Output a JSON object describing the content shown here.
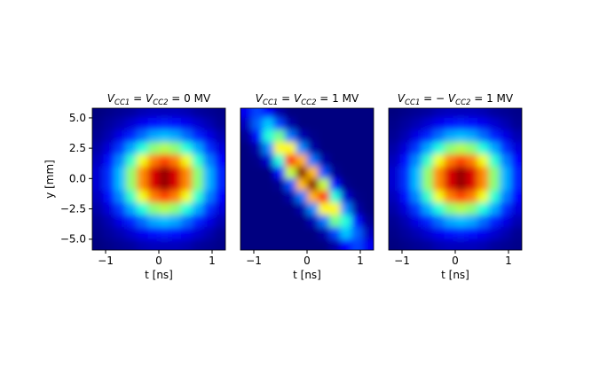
{
  "chart_data": [
    {
      "type": "heatmap",
      "cmap": "jet",
      "title_parts": [
        "V",
        "CC1",
        " = ",
        "V",
        "CC2",
        " = 0 MV"
      ],
      "xlabel": "t [ns]",
      "ylabel": "y [mm]",
      "xlim": [
        -1.25,
        1.25
      ],
      "ylim": [
        -5.9,
        5.8
      ],
      "xticks": [
        {
          "value": -1,
          "label": "−1"
        },
        0,
        1
      ],
      "yticks": [
        {
          "value": 5,
          "label": "5.0"
        },
        {
          "value": 2.5,
          "label": "2.5"
        },
        {
          "value": 0,
          "label": "0.0"
        },
        {
          "value": -2.5,
          "label": "−2.5"
        },
        {
          "value": -5,
          "label": "−5.0"
        }
      ],
      "x": [
        -1.146,
        -0.938,
        -0.729,
        -0.521,
        -0.313,
        -0.104,
        0.104,
        0.313,
        0.521,
        0.729,
        0.938,
        1.146
      ],
      "y": [
        5.5,
        4.5,
        3.5,
        2.5,
        1.5,
        0.5,
        -0.5,
        -1.5,
        -2.5,
        -3.5,
        -4.5,
        -5.5
      ],
      "z": [
        [
          0,
          0.01,
          0.02,
          0.03,
          0.05,
          0.06,
          0.06,
          0.06,
          0.05,
          0.03,
          0.02,
          0.01
        ],
        [
          0.01,
          0.03,
          0.05,
          0.08,
          0.11,
          0.14,
          0.15,
          0.14,
          0.11,
          0.08,
          0.05,
          0.02
        ],
        [
          0.02,
          0.05,
          0.1,
          0.16,
          0.23,
          0.29,
          0.31,
          0.29,
          0.23,
          0.16,
          0.1,
          0.05
        ],
        [
          0.04,
          0.09,
          0.18,
          0.29,
          0.41,
          0.51,
          0.55,
          0.51,
          0.41,
          0.29,
          0.17,
          0.09
        ],
        [
          0.06,
          0.14,
          0.26,
          0.43,
          0.61,
          0.75,
          0.81,
          0.75,
          0.61,
          0.42,
          0.25,
          0.13
        ],
        [
          0.08,
          0.17,
          0.31,
          0.52,
          0.74,
          0.91,
          0.98,
          0.91,
          0.74,
          0.51,
          0.3,
          0.16
        ],
        [
          0.08,
          0.17,
          0.31,
          0.52,
          0.74,
          0.91,
          0.98,
          0.91,
          0.74,
          0.51,
          0.3,
          0.16
        ],
        [
          0.06,
          0.14,
          0.26,
          0.43,
          0.61,
          0.75,
          0.81,
          0.75,
          0.61,
          0.42,
          0.25,
          0.13
        ],
        [
          0.04,
          0.09,
          0.18,
          0.29,
          0.41,
          0.51,
          0.55,
          0.51,
          0.41,
          0.29,
          0.17,
          0.09
        ],
        [
          0.02,
          0.05,
          0.1,
          0.16,
          0.23,
          0.29,
          0.31,
          0.29,
          0.23,
          0.16,
          0.1,
          0.05
        ],
        [
          0.01,
          0.03,
          0.05,
          0.08,
          0.11,
          0.14,
          0.15,
          0.14,
          0.11,
          0.08,
          0.05,
          0.02
        ],
        [
          0,
          0.01,
          0.02,
          0.03,
          0.05,
          0.06,
          0.06,
          0.06,
          0.05,
          0.03,
          0.02,
          0.01
        ]
      ]
    },
    {
      "type": "heatmap",
      "cmap": "jet",
      "title_parts": [
        "V",
        "CC1",
        " = ",
        "V",
        "CC2",
        " = 1 MV"
      ],
      "xlabel": "t [ns]",
      "xlim": [
        -1.25,
        1.25
      ],
      "ylim": [
        -5.9,
        5.8
      ],
      "xticks": [
        {
          "value": -1,
          "label": "−1"
        },
        0,
        1
      ],
      "x": [
        -1.146,
        -0.938,
        -0.729,
        -0.521,
        -0.313,
        -0.104,
        0.104,
        0.313,
        0.521,
        0.729,
        0.938,
        1.146
      ],
      "y": [
        5.5,
        4.5,
        3.5,
        2.5,
        1.5,
        0.5,
        -0.5,
        -1.5,
        -2.5,
        -3.5,
        -4.5,
        -5.5
      ],
      "z": [
        [
          0.11,
          0.19,
          0.13,
          0.04,
          0,
          0,
          0,
          0,
          0,
          0,
          0,
          0
        ],
        [
          0.06,
          0.22,
          0.32,
          0.19,
          0.04,
          0,
          0,
          0,
          0,
          0,
          0,
          0
        ],
        [
          0.02,
          0.14,
          0.41,
          0.49,
          0.24,
          0.05,
          0.01,
          0,
          0,
          0,
          0,
          0
        ],
        [
          0,
          0.04,
          0.26,
          0.63,
          0.63,
          0.26,
          0.04,
          0,
          0,
          0,
          0,
          0
        ],
        [
          0,
          0.01,
          0.08,
          0.41,
          0.84,
          0.7,
          0.24,
          0.04,
          0,
          0,
          0,
          0
        ],
        [
          0,
          0,
          0,
          0.14,
          0.57,
          0.99,
          0.69,
          0.2,
          0.02,
          0,
          0,
          0
        ],
        [
          0,
          0,
          0,
          0.02,
          0.2,
          0.69,
          0.99,
          0.57,
          0.14,
          0.01,
          0,
          0
        ],
        [
          0,
          0,
          0,
          0,
          0.04,
          0.24,
          0.7,
          0.84,
          0.41,
          0.08,
          0.01,
          0
        ],
        [
          0,
          0,
          0,
          0,
          0,
          0.04,
          0.26,
          0.63,
          0.63,
          0.26,
          0.04,
          0
        ],
        [
          0,
          0,
          0,
          0,
          0,
          0,
          0.05,
          0.24,
          0.49,
          0.41,
          0.14,
          0.02
        ],
        [
          0,
          0,
          0,
          0,
          0,
          0,
          0,
          0.04,
          0.19,
          0.32,
          0.22,
          0.06
        ],
        [
          0,
          0,
          0,
          0,
          0,
          0,
          0,
          0,
          0.04,
          0.13,
          0.19,
          0.11
        ]
      ]
    },
    {
      "type": "heatmap",
      "cmap": "jet",
      "title_parts": [
        "V",
        "CC1",
        " = − ",
        "V",
        "CC2",
        " = 1 MV"
      ],
      "xlabel": "t [ns]",
      "xlim": [
        -1.25,
        1.25
      ],
      "ylim": [
        -5.9,
        5.8
      ],
      "xticks": [
        {
          "value": -1,
          "label": "−1"
        },
        0,
        1
      ],
      "x": [
        -1.146,
        -0.938,
        -0.729,
        -0.521,
        -0.313,
        -0.104,
        0.104,
        0.313,
        0.521,
        0.729,
        0.938,
        1.146
      ],
      "y": [
        5.5,
        4.5,
        3.5,
        2.5,
        1.5,
        0.5,
        -0.5,
        -1.5,
        -2.5,
        -3.5,
        -4.5,
        -5.5
      ],
      "z": [
        [
          0,
          0.01,
          0.02,
          0.03,
          0.05,
          0.06,
          0.06,
          0.06,
          0.05,
          0.03,
          0.02,
          0.01
        ],
        [
          0.01,
          0.03,
          0.05,
          0.08,
          0.11,
          0.14,
          0.15,
          0.14,
          0.11,
          0.08,
          0.05,
          0.02
        ],
        [
          0.02,
          0.05,
          0.1,
          0.16,
          0.23,
          0.29,
          0.31,
          0.29,
          0.23,
          0.16,
          0.1,
          0.05
        ],
        [
          0.04,
          0.09,
          0.18,
          0.29,
          0.41,
          0.51,
          0.55,
          0.51,
          0.41,
          0.29,
          0.17,
          0.09
        ],
        [
          0.06,
          0.14,
          0.26,
          0.43,
          0.61,
          0.75,
          0.81,
          0.75,
          0.61,
          0.42,
          0.25,
          0.13
        ],
        [
          0.08,
          0.17,
          0.31,
          0.52,
          0.74,
          0.91,
          0.98,
          0.91,
          0.74,
          0.51,
          0.3,
          0.16
        ],
        [
          0.08,
          0.17,
          0.31,
          0.52,
          0.74,
          0.91,
          0.98,
          0.91,
          0.74,
          0.51,
          0.3,
          0.16
        ],
        [
          0.06,
          0.14,
          0.26,
          0.43,
          0.61,
          0.75,
          0.81,
          0.75,
          0.61,
          0.42,
          0.25,
          0.13
        ],
        [
          0.04,
          0.09,
          0.18,
          0.29,
          0.41,
          0.51,
          0.55,
          0.51,
          0.41,
          0.29,
          0.17,
          0.09
        ],
        [
          0.02,
          0.05,
          0.1,
          0.16,
          0.23,
          0.29,
          0.31,
          0.29,
          0.23,
          0.16,
          0.1,
          0.05
        ],
        [
          0.01,
          0.03,
          0.05,
          0.08,
          0.11,
          0.14,
          0.15,
          0.14,
          0.11,
          0.08,
          0.05,
          0.02
        ],
        [
          0,
          0.01,
          0.02,
          0.03,
          0.05,
          0.06,
          0.06,
          0.06,
          0.05,
          0.03,
          0.02,
          0.01
        ]
      ]
    }
  ]
}
